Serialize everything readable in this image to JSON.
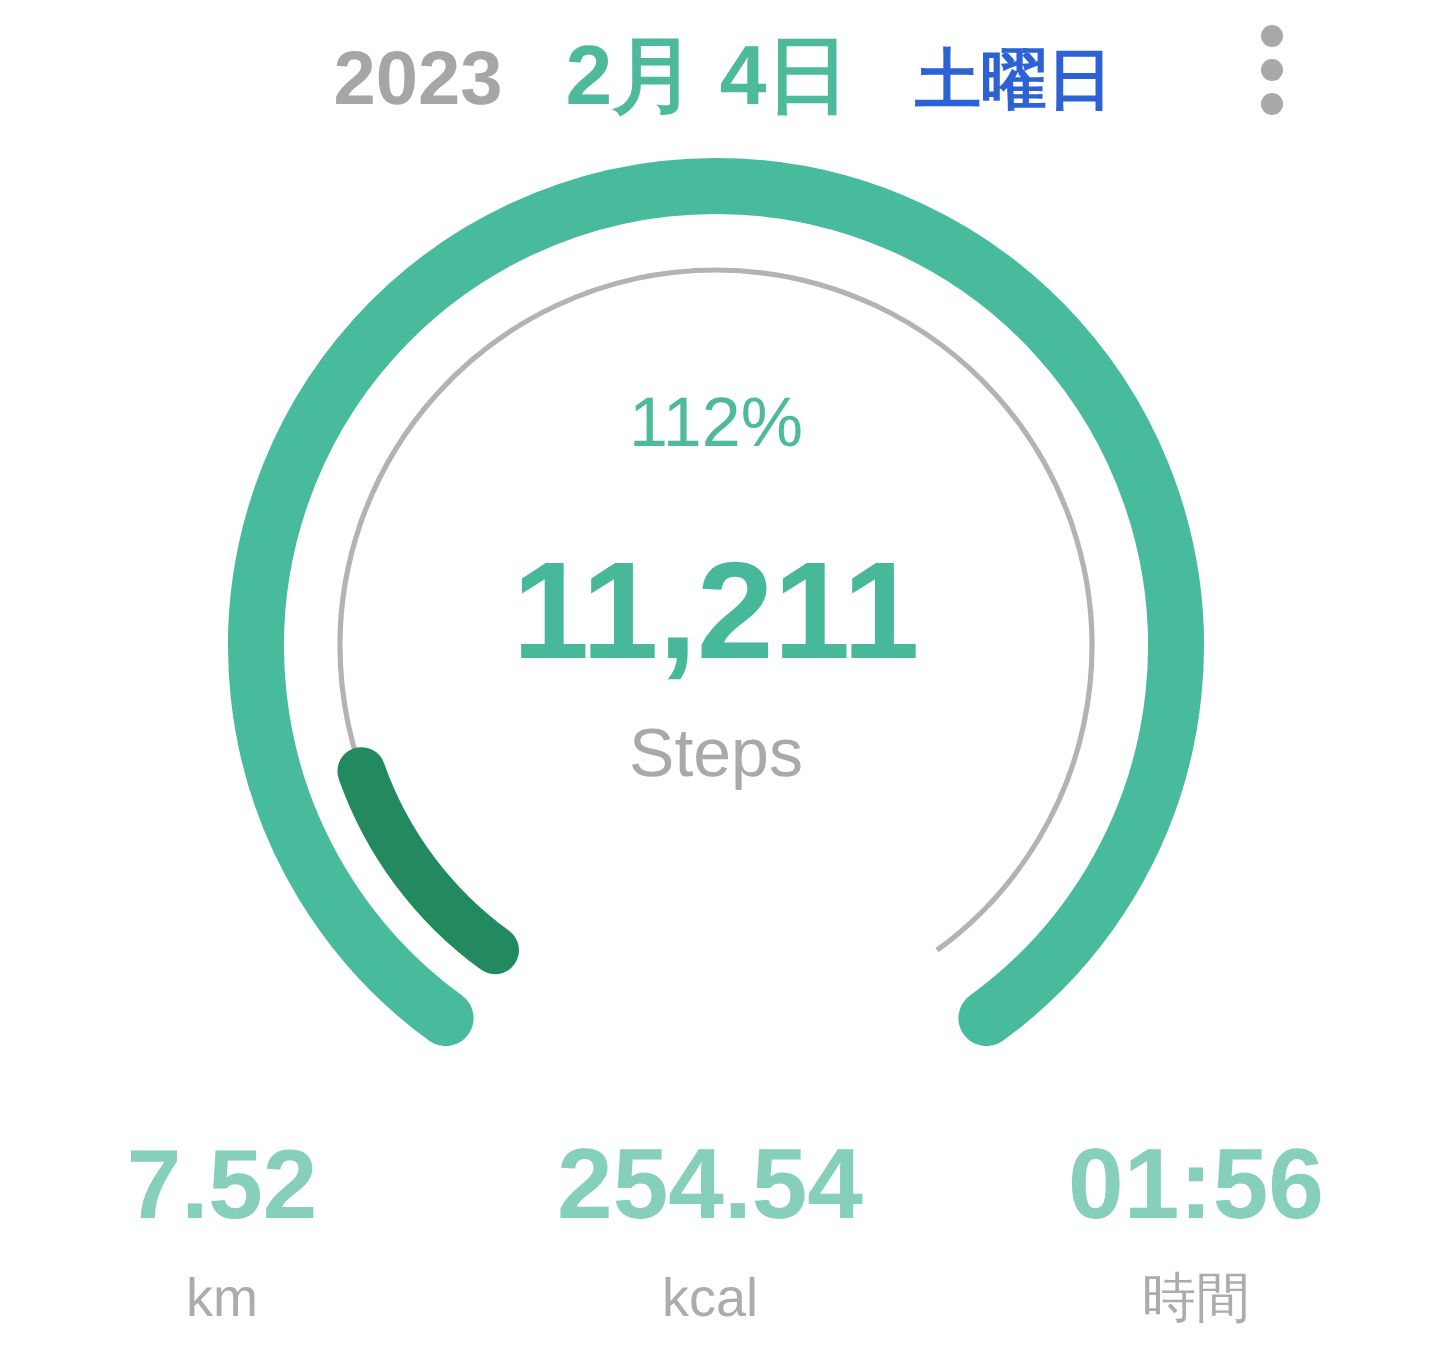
{
  "chart_data": {
    "type": "other",
    "values": [
      112
    ],
    "value_labels": [
      "112%"
    ],
    "color": "#48bb9c",
    "annotations": [
      "2023",
      "2月 4日",
      "土曜日",
      "11,211",
      "Steps",
      "7.52",
      "km",
      "254.54",
      "kcal",
      "01:56",
      "時間"
    ]
  }
}
